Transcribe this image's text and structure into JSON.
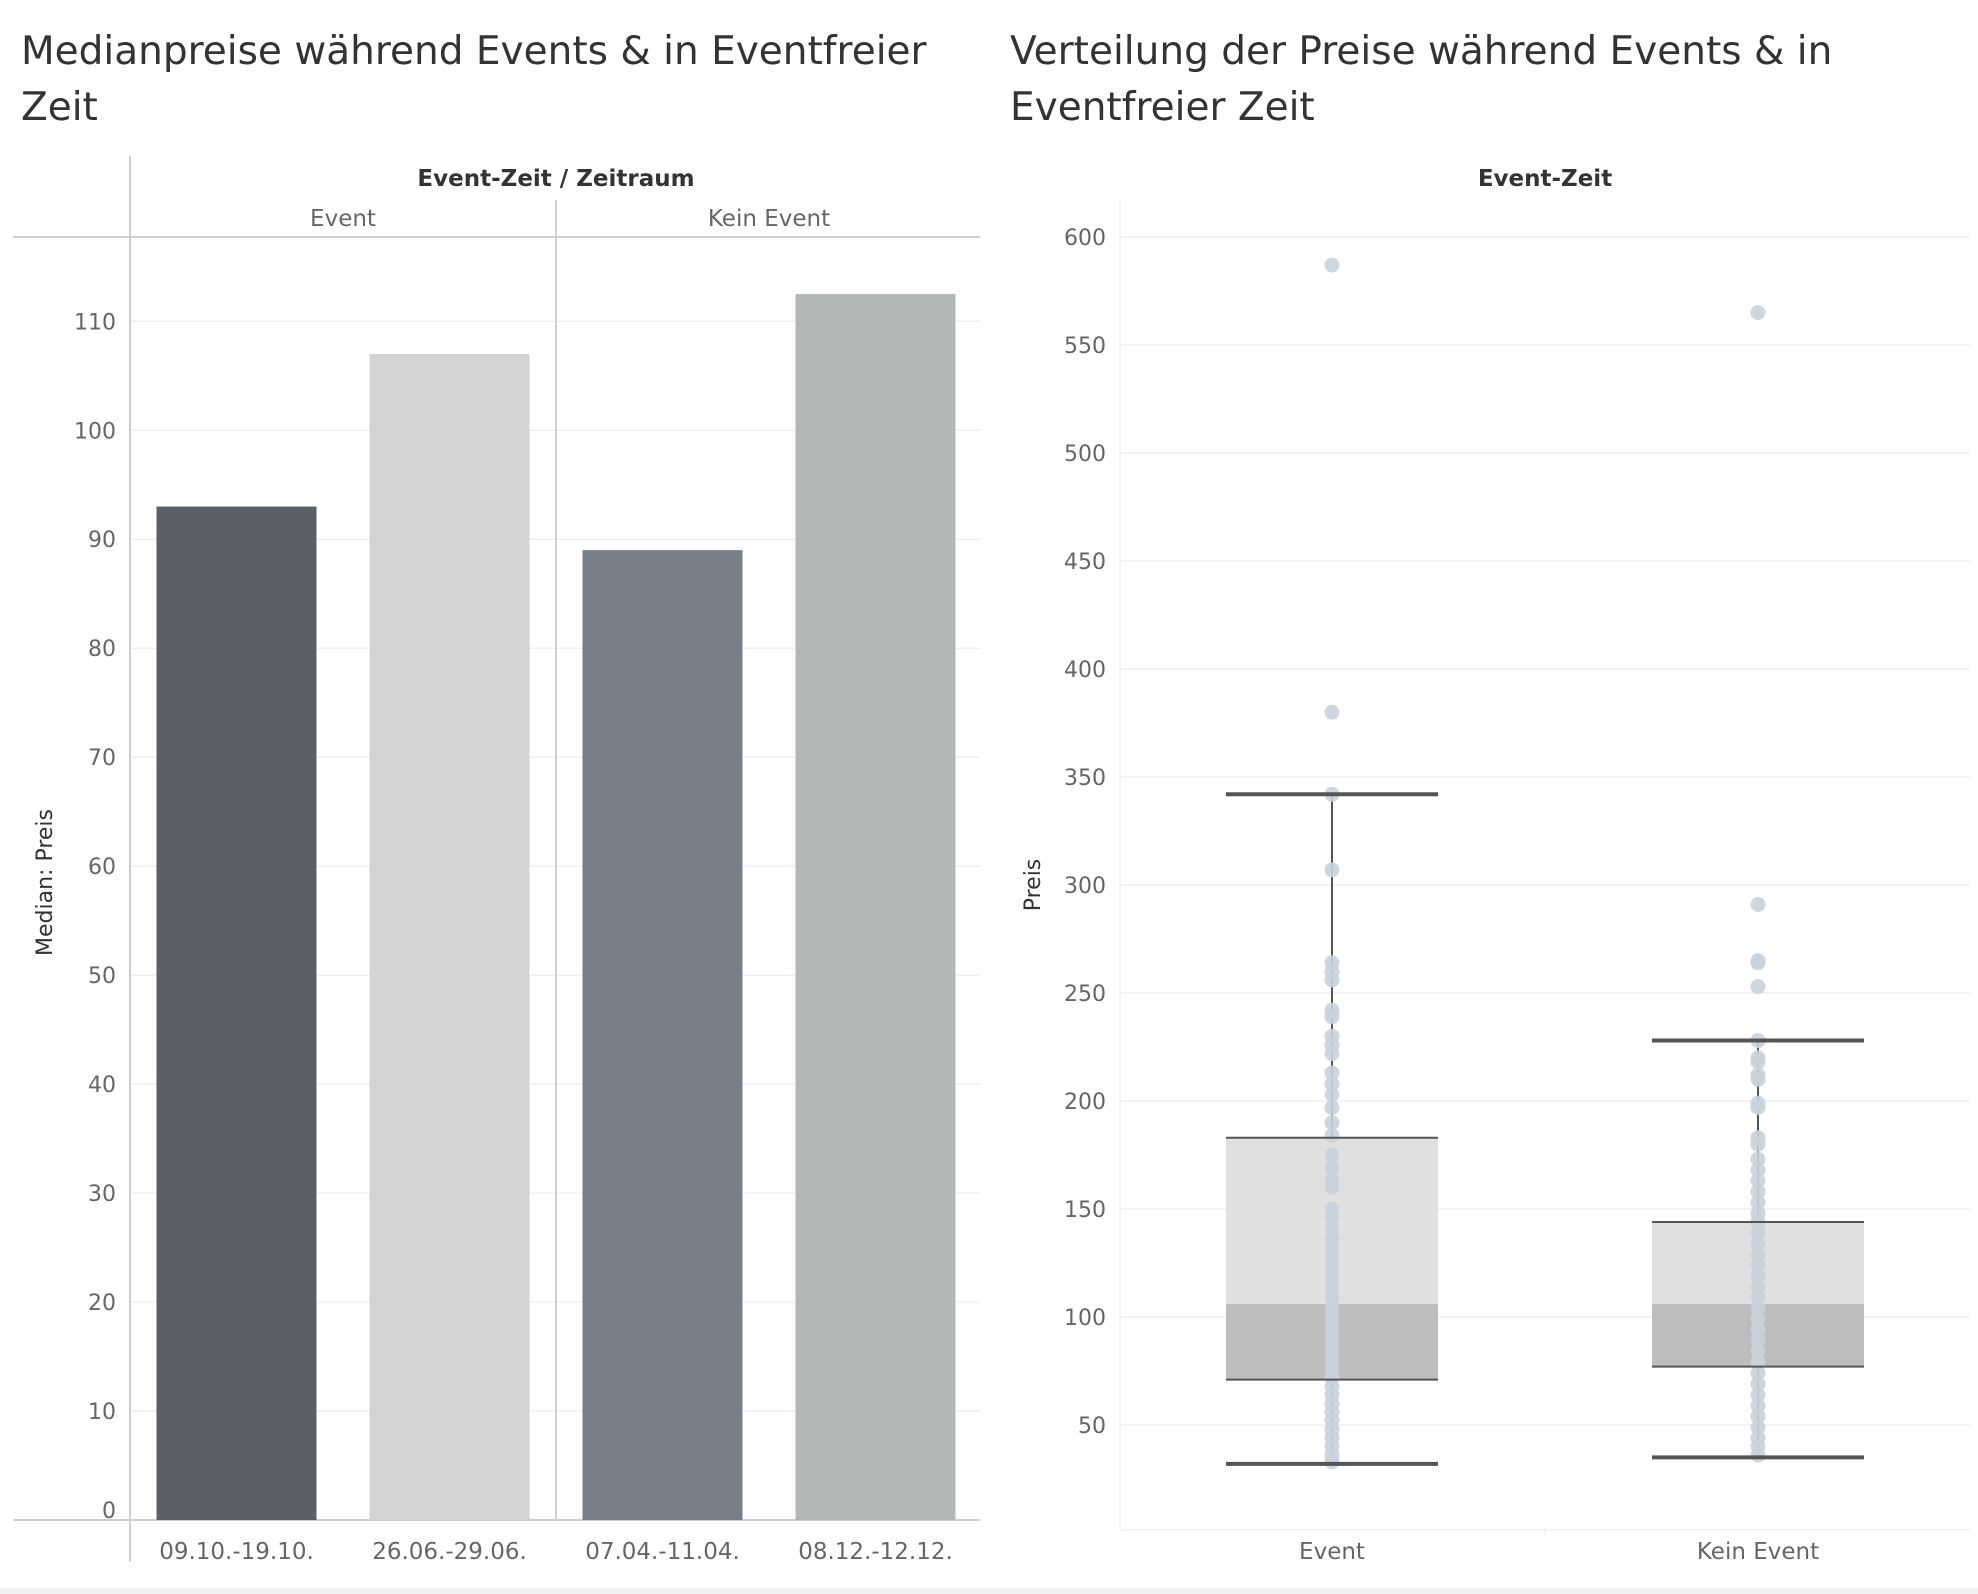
{
  "left_chart": {
    "title": "Medianpreise während Events & in Eventfreier Zeit",
    "chart_data": {
      "type": "bar",
      "title": "Medianpreise während Events & in Eventfreier Zeit",
      "header_label": "Event-Zeit / Zeitraum",
      "ylabel": "Median: Preis",
      "ylim": [
        0,
        117
      ],
      "yticks": [
        0,
        10,
        20,
        30,
        40,
        50,
        60,
        70,
        80,
        90,
        100,
        110
      ],
      "groups": [
        {
          "name": "Event",
          "categories": [
            "09.10.-19.10.",
            "26.06.-29.06."
          ],
          "values": [
            93,
            107
          ],
          "colors": [
            "#5b6068",
            "#d3d3d3"
          ]
        },
        {
          "name": "Kein Event",
          "categories": [
            "07.04.-11.04.",
            "08.12.-12.12."
          ],
          "values": [
            89,
            112.5
          ],
          "colors": [
            "#787f8b",
            "#b3b7b8"
          ]
        }
      ]
    }
  },
  "right_chart": {
    "title": "Verteilung der Preise während Events & in Eventfreier Zeit",
    "chart_data": {
      "type": "scatter",
      "subtype": "box-plot",
      "title": "Verteilung der Preise während Events & in Eventfreier Zeit",
      "header_label": "Event-Zeit",
      "ylabel": "Preis",
      "ylim": [
        0,
        620
      ],
      "yticks": [
        50,
        100,
        150,
        200,
        250,
        300,
        350,
        400,
        450,
        500,
        550,
        600
      ],
      "categories": [
        "Event",
        "Kein Event"
      ],
      "boxes": [
        {
          "category": "Event",
          "whisker_low": 32,
          "q1": 71,
          "median": 106,
          "q3": 183,
          "whisker_high": 342,
          "points": [
            587,
            380,
            342,
            307,
            264,
            260,
            256,
            242,
            239,
            230,
            226,
            222,
            213,
            208,
            203,
            197,
            190,
            184,
            175,
            169,
            163,
            160,
            150,
            146,
            141,
            136,
            131,
            127,
            122,
            118,
            113,
            109,
            104,
            100,
            96,
            92,
            88,
            84,
            80,
            76,
            72,
            68,
            64,
            60,
            56,
            52,
            48,
            44,
            40,
            36,
            33
          ]
        },
        {
          "category": "Kein Event",
          "whisker_low": 35,
          "q1": 77,
          "median": 106,
          "q3": 144,
          "whisker_high": 228,
          "points": [
            565,
            291,
            265,
            264,
            253,
            228,
            220,
            218,
            212,
            210,
            199,
            197,
            183,
            180,
            173,
            168,
            163,
            158,
            153,
            148,
            144,
            139,
            134,
            129,
            124,
            119,
            114,
            109,
            104,
            99,
            94,
            89,
            84,
            79,
            74,
            69,
            64,
            59,
            54,
            49,
            44,
            40,
            36
          ]
        }
      ],
      "colors": {
        "box_upper": "#e0e0e0",
        "box_lower": "#bdbdbd",
        "whisker": "#555555",
        "points": "#c9d3db"
      }
    }
  }
}
